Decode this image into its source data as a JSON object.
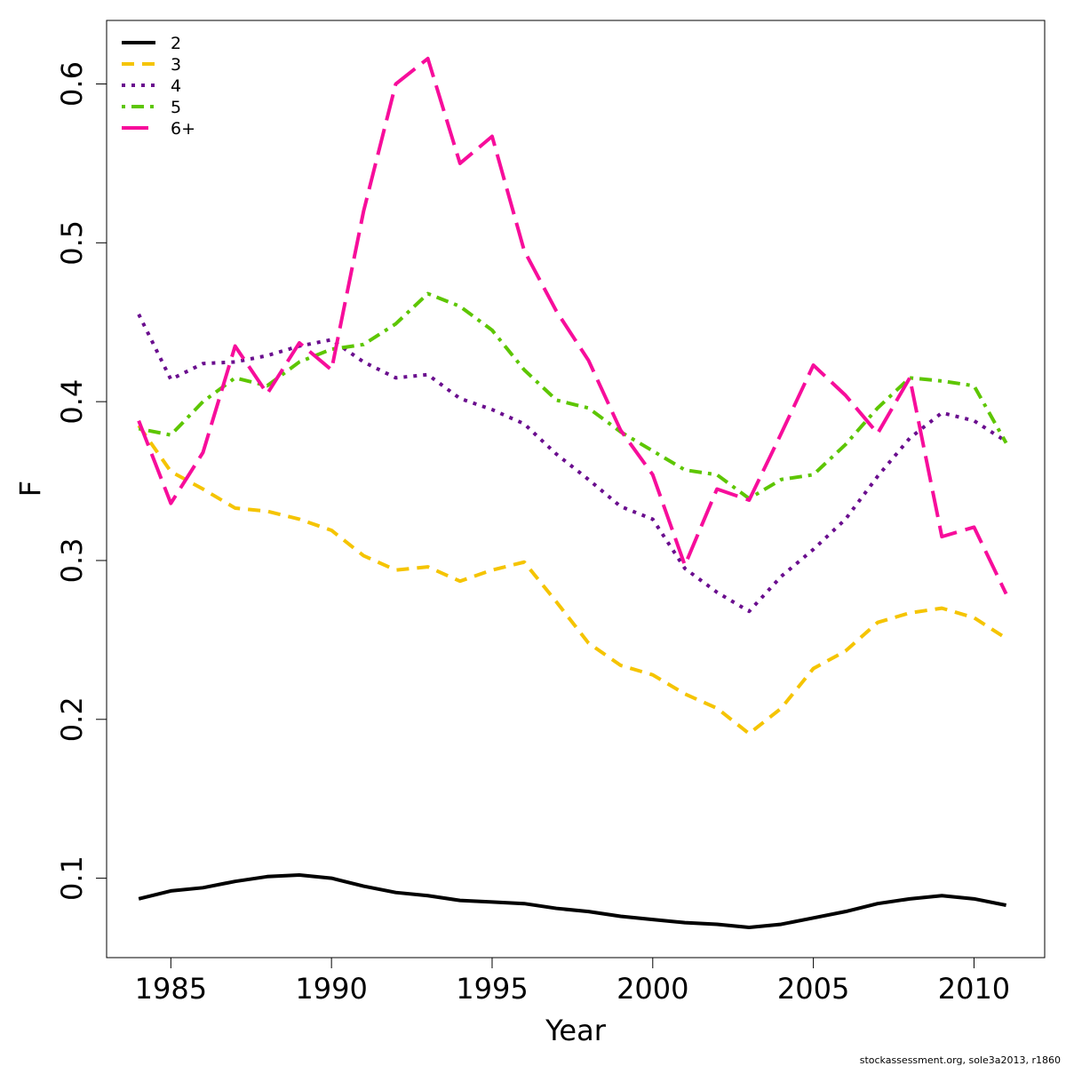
{
  "chart_data": {
    "type": "line",
    "xlabel": "Year",
    "ylabel": "F",
    "xlim": [
      1983,
      2012.2
    ],
    "ylim": [
      0.05,
      0.64
    ],
    "xticks": [
      1985,
      1990,
      1995,
      2000,
      2005,
      2010
    ],
    "yticks": [
      0.1,
      0.2,
      0.3,
      0.4,
      0.5,
      0.6
    ],
    "grid": false,
    "legend_position": "top-left",
    "x": [
      1984,
      1985,
      1986,
      1987,
      1988,
      1989,
      1990,
      1991,
      1992,
      1993,
      1994,
      1995,
      1996,
      1997,
      1998,
      1999,
      2000,
      2001,
      2002,
      2003,
      2004,
      2005,
      2006,
      2007,
      2008,
      2009,
      2010,
      2011
    ],
    "series": [
      {
        "name": "2",
        "color": "#000000",
        "dash": "solid",
        "values": [
          0.087,
          0.092,
          0.094,
          0.098,
          0.101,
          0.102,
          0.1,
          0.095,
          0.091,
          0.089,
          0.086,
          0.085,
          0.084,
          0.081,
          0.079,
          0.076,
          0.074,
          0.072,
          0.071,
          0.069,
          0.071,
          0.075,
          0.079,
          0.084,
          0.087,
          0.089,
          0.087,
          0.083
        ]
      },
      {
        "name": "3",
        "color": "#F5C400",
        "dash": "dashed",
        "values": [
          0.385,
          0.356,
          0.345,
          0.333,
          0.331,
          0.326,
          0.319,
          0.303,
          0.294,
          0.296,
          0.287,
          0.294,
          0.299,
          0.274,
          0.248,
          0.234,
          0.228,
          0.216,
          0.207,
          0.191,
          0.207,
          0.232,
          0.243,
          0.261,
          0.267,
          0.27,
          0.264,
          0.251
        ]
      },
      {
        "name": "4",
        "color": "#6A0D8E",
        "dash": "dotted",
        "values": [
          0.455,
          0.414,
          0.424,
          0.425,
          0.429,
          0.435,
          0.439,
          0.425,
          0.415,
          0.417,
          0.402,
          0.395,
          0.386,
          0.367,
          0.351,
          0.334,
          0.326,
          0.295,
          0.28,
          0.268,
          0.29,
          0.307,
          0.326,
          0.353,
          0.377,
          0.393,
          0.388,
          0.375
        ]
      },
      {
        "name": "5",
        "color": "#5DC600",
        "dash": "dotdash",
        "values": [
          0.383,
          0.379,
          0.4,
          0.415,
          0.41,
          0.425,
          0.433,
          0.436,
          0.449,
          0.468,
          0.46,
          0.445,
          0.42,
          0.401,
          0.396,
          0.381,
          0.369,
          0.357,
          0.354,
          0.339,
          0.351,
          0.354,
          0.373,
          0.396,
          0.415,
          0.413,
          0.41,
          0.374
        ]
      },
      {
        "name": "6+",
        "color": "#F70D9B",
        "dash": "longdash",
        "values": [
          0.388,
          0.336,
          0.368,
          0.435,
          0.405,
          0.437,
          0.42,
          0.52,
          0.6,
          0.616,
          0.55,
          0.567,
          0.495,
          0.457,
          0.426,
          0.382,
          0.354,
          0.297,
          0.345,
          0.338,
          0.38,
          0.423,
          0.404,
          0.38,
          0.415,
          0.315,
          0.321,
          0.279
        ]
      }
    ]
  },
  "footer": {
    "text": "stockassessment.org, sole3a2013, r1860"
  }
}
